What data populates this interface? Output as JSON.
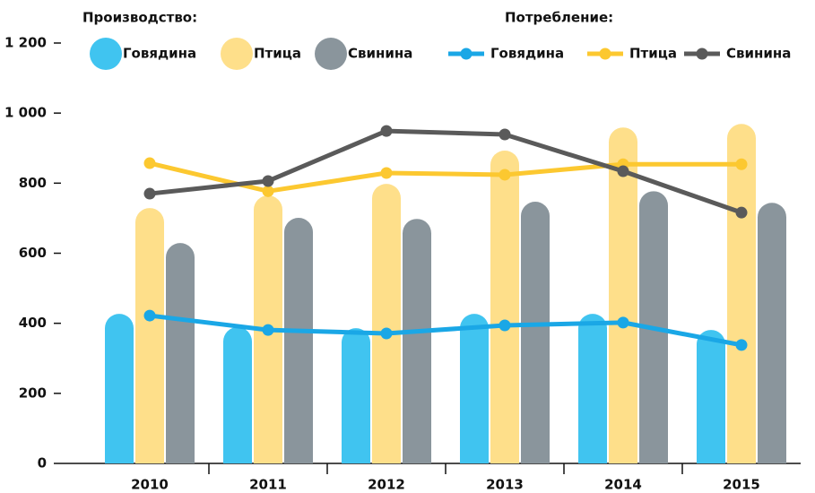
{
  "chart_data": {
    "type": "bar",
    "legend_titles": [
      "Производство:",
      "Потребление:"
    ],
    "categories": [
      "2010",
      "2011",
      "2012",
      "2013",
      "2014",
      "2015"
    ],
    "series": [
      {
        "name": "Говядина",
        "type": "bar",
        "color": "#40c4f0",
        "values": [
          427,
          389,
          386,
          427,
          427,
          381
        ]
      },
      {
        "name": "Птица",
        "type": "bar",
        "color": "#fedf8a",
        "values": [
          729,
          765,
          798,
          893,
          959,
          969
        ]
      },
      {
        "name": "Свинина",
        "type": "bar",
        "color": "#8a959c",
        "values": [
          629,
          701,
          698,
          747,
          777,
          744
        ]
      },
      {
        "name": "Говядина",
        "type": "line",
        "color": "#1aa7e6",
        "values": [
          422,
          381,
          371,
          394,
          402,
          338
        ]
      },
      {
        "name": "Птица",
        "type": "line",
        "color": "#fcc830",
        "values": [
          857,
          777,
          829,
          824,
          854,
          854
        ]
      },
      {
        "name": "Свинина",
        "type": "line",
        "color": "#5a5a5a",
        "values": [
          770,
          806,
          949,
          939,
          834,
          716
        ]
      }
    ],
    "ylim": [
      0,
      1200
    ],
    "yticks": [
      0,
      200,
      400,
      600,
      800,
      {
        "value": 1000,
        "label": "1 000"
      },
      {
        "value": 1200,
        "label": "1 200"
      }
    ]
  }
}
